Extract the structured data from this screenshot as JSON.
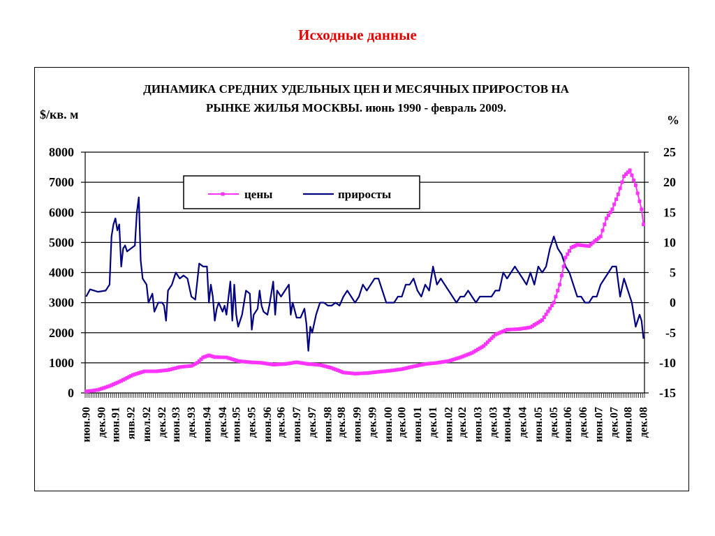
{
  "slide": {
    "title": "Исходные данные"
  },
  "chart_data": {
    "type": "line",
    "title_line1": "ДИНАМИКА СРЕДНИХ УДЕЛЬНЫХ ЦЕН И МЕСЯЧНЫХ ПРИРОСТОВ НА",
    "title_line2": "РЫНКЕ ЖИЛЬЯ МОСКВЫ. июнь 1990 - февраль 2009.",
    "ylabel_left": "$/кв. м",
    "ylabel_right": "%",
    "ylim_left": [
      0,
      8000
    ],
    "ylim_right": [
      -15,
      25
    ],
    "yticks_left": [
      "0",
      "1000",
      "2000",
      "3000",
      "4000",
      "5000",
      "6000",
      "7000",
      "8000"
    ],
    "yticks_right": [
      "-15",
      "-10",
      "-5",
      "0",
      "5",
      "10",
      "15",
      "20",
      "25"
    ],
    "x_ticks": [
      "июн.90",
      "дек.90",
      "июн.91",
      "янв.92",
      "июл.92",
      "дек.92",
      "июн.93",
      "дек.93",
      "июн.94",
      "дек.94",
      "июн.95",
      "дек.95",
      "июн.96",
      "дек.96",
      "июн.97",
      "дек.97",
      "июн.98",
      "дек.98",
      "июн.99",
      "дек.99",
      "июн.00",
      "дек.00",
      "июн.01",
      "дек.01",
      "июн.02",
      "дек.02",
      "июн.03",
      "дек.03",
      "июн.04",
      "дек.04",
      "июн.05",
      "дек.05",
      "июн.06",
      "дек.06",
      "июн.07",
      "дек.07",
      "июн.08",
      "дек.08"
    ],
    "legend": {
      "position": "top-left",
      "items": [
        "цены",
        "приросты"
      ]
    },
    "colors": {
      "prices": "#ff33ff",
      "growth": "#000080"
    },
    "grid": "horizontal",
    "series": [
      {
        "name": "цены",
        "axis": "left",
        "points": [
          [
            0,
            50
          ],
          [
            6,
            100
          ],
          [
            12,
            230
          ],
          [
            18,
            400
          ],
          [
            24,
            600
          ],
          [
            30,
            720
          ],
          [
            36,
            720
          ],
          [
            42,
            760
          ],
          [
            48,
            860
          ],
          [
            54,
            900
          ],
          [
            57,
            1000
          ],
          [
            60,
            1180
          ],
          [
            63,
            1250
          ],
          [
            66,
            1190
          ],
          [
            72,
            1180
          ],
          [
            78,
            1060
          ],
          [
            84,
            1020
          ],
          [
            90,
            1000
          ],
          [
            96,
            940
          ],
          [
            102,
            960
          ],
          [
            108,
            1020
          ],
          [
            114,
            960
          ],
          [
            120,
            930
          ],
          [
            126,
            830
          ],
          [
            132,
            680
          ],
          [
            138,
            640
          ],
          [
            144,
            660
          ],
          [
            150,
            700
          ],
          [
            156,
            740
          ],
          [
            162,
            790
          ],
          [
            168,
            880
          ],
          [
            174,
            960
          ],
          [
            180,
            1000
          ],
          [
            186,
            1060
          ],
          [
            192,
            1180
          ],
          [
            198,
            1330
          ],
          [
            204,
            1560
          ],
          [
            210,
            1940
          ],
          [
            216,
            2100
          ],
          [
            222,
            2120
          ],
          [
            228,
            2180
          ],
          [
            234,
            2420
          ],
          [
            240,
            3000
          ],
          [
            243,
            3600
          ],
          [
            246,
            4500
          ],
          [
            249,
            4830
          ],
          [
            252,
            4920
          ],
          [
            258,
            4880
          ],
          [
            264,
            5200
          ],
          [
            267,
            5800
          ],
          [
            270,
            6100
          ],
          [
            273,
            6600
          ],
          [
            276,
            7200
          ],
          [
            279,
            7400
          ],
          [
            282,
            6900
          ],
          [
            285,
            6100
          ],
          [
            286,
            5600
          ]
        ]
      },
      {
        "name": "приросты",
        "axis": "right",
        "points": [
          [
            0,
            1
          ],
          [
            2,
            2.2
          ],
          [
            6,
            1.8
          ],
          [
            10,
            2
          ],
          [
            12,
            3
          ],
          [
            13,
            11
          ],
          [
            14,
            13
          ],
          [
            15,
            14
          ],
          [
            16,
            12
          ],
          [
            17,
            13
          ],
          [
            18,
            6
          ],
          [
            19,
            9
          ],
          [
            20,
            9.5
          ],
          [
            21,
            8.5
          ],
          [
            23,
            9
          ],
          [
            25,
            9.5
          ],
          [
            26,
            15
          ],
          [
            27,
            17.5
          ],
          [
            28,
            7
          ],
          [
            29,
            4
          ],
          [
            31,
            3
          ],
          [
            32,
            0
          ],
          [
            34,
            1.5
          ],
          [
            35,
            -1.5
          ],
          [
            37,
            0
          ],
          [
            39,
            0
          ],
          [
            40,
            -0.5
          ],
          [
            41,
            -3
          ],
          [
            42,
            2
          ],
          [
            44,
            3
          ],
          [
            46,
            5
          ],
          [
            48,
            4
          ],
          [
            50,
            4.5
          ],
          [
            52,
            4
          ],
          [
            54,
            1
          ],
          [
            56,
            0.5
          ],
          [
            58,
            6.5
          ],
          [
            60,
            6
          ],
          [
            62,
            6
          ],
          [
            63,
            0
          ],
          [
            64,
            3
          ],
          [
            65,
            1
          ],
          [
            66,
            -3
          ],
          [
            67,
            -1
          ],
          [
            68,
            0
          ],
          [
            70,
            -1.5
          ],
          [
            71,
            -0.5
          ],
          [
            72,
            -2
          ],
          [
            74,
            3.5
          ],
          [
            75,
            -3
          ],
          [
            76,
            3
          ],
          [
            77,
            -2
          ],
          [
            78,
            -4
          ],
          [
            80,
            -2
          ],
          [
            81,
            0
          ],
          [
            82,
            2
          ],
          [
            84,
            1.5
          ],
          [
            85,
            -4.5
          ],
          [
            86,
            -2
          ],
          [
            88,
            -1
          ],
          [
            89,
            2
          ],
          [
            90,
            -0.5
          ],
          [
            91,
            -1.5
          ],
          [
            93,
            -2
          ],
          [
            94,
            -0.5
          ],
          [
            96,
            3.5
          ],
          [
            97,
            -2
          ],
          [
            98,
            2
          ],
          [
            100,
            1
          ],
          [
            102,
            2
          ],
          [
            104,
            3
          ],
          [
            105,
            -2
          ],
          [
            106,
            0
          ],
          [
            108,
            -2.5
          ],
          [
            110,
            -2.5
          ],
          [
            112,
            -1
          ],
          [
            113,
            -3.5
          ],
          [
            114,
            -8
          ],
          [
            115,
            -4
          ],
          [
            116,
            -5
          ],
          [
            118,
            -2
          ],
          [
            120,
            0
          ],
          [
            122,
            0
          ],
          [
            124,
            -0.5
          ],
          [
            126,
            -0.5
          ],
          [
            128,
            0
          ],
          [
            130,
            -0.5
          ],
          [
            132,
            1
          ],
          [
            134,
            2
          ],
          [
            136,
            1
          ],
          [
            138,
            0
          ],
          [
            140,
            1
          ],
          [
            142,
            3
          ],
          [
            144,
            2
          ],
          [
            146,
            3
          ],
          [
            148,
            4
          ],
          [
            150,
            4
          ],
          [
            152,
            2
          ],
          [
            154,
            0
          ],
          [
            156,
            0
          ],
          [
            158,
            0
          ],
          [
            160,
            1
          ],
          [
            162,
            1
          ],
          [
            164,
            3
          ],
          [
            166,
            3
          ],
          [
            168,
            4
          ],
          [
            170,
            2
          ],
          [
            172,
            1
          ],
          [
            174,
            3
          ],
          [
            176,
            2
          ],
          [
            178,
            6
          ],
          [
            180,
            3
          ],
          [
            182,
            4
          ],
          [
            184,
            3
          ],
          [
            186,
            2
          ],
          [
            188,
            1
          ],
          [
            190,
            0
          ],
          [
            192,
            1
          ],
          [
            194,
            1
          ],
          [
            196,
            2
          ],
          [
            198,
            1
          ],
          [
            200,
            0
          ],
          [
            202,
            1
          ],
          [
            204,
            1
          ],
          [
            206,
            1
          ],
          [
            208,
            1
          ],
          [
            210,
            2
          ],
          [
            212,
            2
          ],
          [
            214,
            5
          ],
          [
            216,
            4
          ],
          [
            218,
            5
          ],
          [
            220,
            6
          ],
          [
            222,
            5
          ],
          [
            224,
            4
          ],
          [
            226,
            3
          ],
          [
            228,
            5
          ],
          [
            230,
            3
          ],
          [
            232,
            6
          ],
          [
            234,
            5
          ],
          [
            236,
            6
          ],
          [
            238,
            9
          ],
          [
            240,
            11
          ],
          [
            242,
            9
          ],
          [
            244,
            8
          ],
          [
            246,
            6
          ],
          [
            248,
            5
          ],
          [
            250,
            3
          ],
          [
            252,
            1
          ],
          [
            254,
            1
          ],
          [
            256,
            0
          ],
          [
            258,
            0
          ],
          [
            260,
            1
          ],
          [
            262,
            1
          ],
          [
            264,
            3
          ],
          [
            266,
            4
          ],
          [
            268,
            5
          ],
          [
            270,
            6
          ],
          [
            272,
            6
          ],
          [
            274,
            1
          ],
          [
            276,
            4
          ],
          [
            278,
            2
          ],
          [
            280,
            0
          ],
          [
            282,
            -4
          ],
          [
            284,
            -2
          ],
          [
            285,
            -3
          ],
          [
            286,
            -6
          ]
        ]
      }
    ]
  }
}
